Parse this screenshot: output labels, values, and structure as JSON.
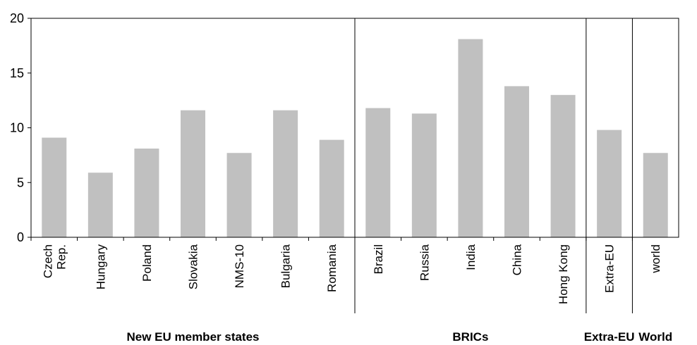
{
  "chart_data": {
    "type": "bar",
    "categories": [
      [
        "Czech",
        "Rep."
      ],
      [
        "Hungary"
      ],
      [
        "Poland"
      ],
      [
        "Slovakia"
      ],
      [
        "NMS-10"
      ],
      [
        "Bulgaria"
      ],
      [
        "Romania"
      ],
      [
        "Brazil"
      ],
      [
        "Russia"
      ],
      [
        "India"
      ],
      [
        "China"
      ],
      [
        "Hong Kong"
      ],
      [
        "Extra-EU"
      ],
      [
        "world"
      ]
    ],
    "values": [
      9.1,
      5.9,
      8.1,
      11.6,
      7.7,
      11.6,
      8.9,
      11.8,
      11.3,
      18.1,
      13.8,
      13.0,
      9.8,
      7.7
    ],
    "ylim": [
      0,
      20
    ],
    "yticks": [
      0,
      5,
      10,
      15,
      20
    ],
    "groups": [
      {
        "label": "New EU member states",
        "start": 0,
        "end": 6
      },
      {
        "label": "BRICs",
        "start": 7,
        "end": 11
      },
      {
        "label": "Extra-EU",
        "start": 12,
        "end": 12
      },
      {
        "label": "World",
        "start": 13,
        "end": 13
      }
    ],
    "bar_color": "#c0c0c0",
    "grid": false,
    "title": "",
    "xlabel": "",
    "ylabel": ""
  }
}
